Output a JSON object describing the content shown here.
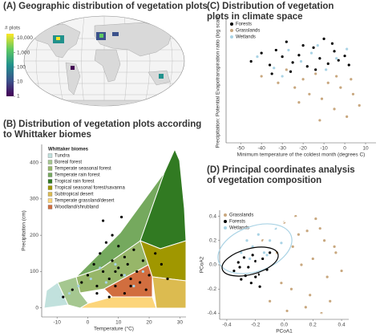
{
  "chart_data": [
    {
      "type": "map",
      "title": [
        "(A) Geographic distribution of vegetation plots"
      ],
      "colorbar": {
        "title": "# plots",
        "log": true,
        "lim": [
          1,
          20000
        ],
        "ticks": [
          {
            "value": 10000,
            "label": "10,000"
          },
          {
            "value": 1000,
            "label": "1,000"
          },
          100,
          10,
          1
        ]
      }
    },
    {
      "type": "scatter",
      "title": [
        "(B) Distribution of vegetation plots according",
        "to Whittaker biomes"
      ],
      "xlabel": "Temperature (°C)",
      "ylabel": "Precipitation (cm)",
      "xlim": [
        -15,
        32
      ],
      "ylim": [
        -25,
        450
      ],
      "xticks": [
        -10,
        0,
        10,
        20,
        30
      ],
      "yticks": [
        0,
        100,
        200,
        300,
        400
      ],
      "legend_title": "Whittaker biomes",
      "biomes": [
        {
          "name": "Tundra",
          "color": "#c1e1dd"
        },
        {
          "name": "Boreal forest",
          "color": "#a5c790"
        },
        {
          "name": "Temperate seasonal forest",
          "color": "#97b669"
        },
        {
          "name": "Temperate rain forest",
          "color": "#75a95e"
        },
        {
          "name": "Tropical rain forest",
          "color": "#317a22"
        },
        {
          "name": "Tropical seasonal forest/savanna",
          "color": "#a09700"
        },
        {
          "name": "Subtropical desert",
          "color": "#dcbb50"
        },
        {
          "name": "Temperate grassland/desert",
          "color": "#fcd57a"
        },
        {
          "name": "Woodland/shrubland",
          "color": "#d16e3f"
        }
      ],
      "series": [
        {
          "color": "#000000",
          "x": [
            -8,
            -5,
            -2,
            0,
            2,
            3,
            4,
            5,
            6,
            7,
            8,
            8,
            9,
            10,
            10,
            11,
            12,
            12,
            13,
            14,
            15,
            16,
            17,
            18,
            19,
            20,
            22,
            24,
            26,
            5,
            7,
            9,
            11,
            3,
            14
          ],
          "values": [
            30,
            50,
            70,
            90,
            120,
            60,
            150,
            100,
            180,
            80,
            130,
            200,
            60,
            110,
            170,
            90,
            140,
            40,
            120,
            80,
            160,
            100,
            70,
            130,
            50,
            90,
            150,
            120,
            80,
            240,
            30,
            100,
            250,
            40,
            60
          ]
        },
        {
          "color": "#a9d3e5",
          "x": [
            -6,
            -3,
            1,
            4,
            6,
            9,
            12,
            15,
            18
          ],
          "values": [
            40,
            60,
            80,
            110,
            70,
            120,
            90,
            60,
            100
          ]
        }
      ]
    },
    {
      "type": "scatter",
      "title": [
        "(C) Distribution of vegetation",
        "plots  in climate space"
      ],
      "xlabel": "Minimum temperature of the coldest month (degrees C)",
      "ylabel": "Precipitation: Potential Evapotranspiration ratio (log scale)",
      "xlim": [
        -57,
        15
      ],
      "ylim": [
        0.01,
        20
      ],
      "ylog": true,
      "xticks": [
        -50,
        -40,
        -30,
        -20,
        -10,
        0,
        10
      ],
      "series": [
        {
          "name": "Forests",
          "color": "#000000",
          "x": [
            -45,
            -40,
            -36,
            -33,
            -30,
            -28,
            -25,
            -22,
            -20,
            -18,
            -15,
            -12,
            -10,
            -8,
            -5,
            -3,
            0,
            -26,
            -14,
            -6,
            2,
            -35
          ],
          "values": [
            1.5,
            2.5,
            1.2,
            3,
            2,
            5,
            1.4,
            2.2,
            4,
            1.1,
            3.5,
            1.8,
            6,
            1.3,
            2.8,
            1.6,
            2.1,
            0.8,
            0.9,
            4.5,
            1.2,
            0.7
          ]
        },
        {
          "name": "Grasslands",
          "color": "#c8a77e",
          "x": [
            -40,
            -32,
            -28,
            -24,
            -20,
            -17,
            -14,
            -11,
            -8,
            -5,
            -2,
            1,
            4,
            7,
            -22,
            -12,
            -4,
            3
          ],
          "values": [
            0.6,
            0.4,
            0.9,
            0.3,
            0.5,
            0.2,
            0.7,
            0.15,
            0.4,
            0.08,
            0.3,
            0.05,
            0.2,
            0.1,
            0.12,
            0.04,
            0.6,
            0.5
          ]
        },
        {
          "name": "Wetlands",
          "color": "#a9d3e5",
          "x": [
            -42,
            -34,
            -27,
            -21,
            -16,
            -9,
            -4,
            1,
            -30,
            -13
          ],
          "values": [
            2,
            1,
            3,
            1.5,
            2.5,
            0.9,
            1.8,
            3.2,
            0.6,
            4
          ]
        }
      ]
    },
    {
      "type": "scatter",
      "title": [
        "(D) Principal coordinates analysis",
        "of vegetation composition"
      ],
      "xlabel": "PCoA1",
      "ylabel": "PCoA2",
      "xlim": [
        -0.45,
        0.45
      ],
      "ylim": [
        -0.45,
        0.45
      ],
      "xticks": [
        -0.4,
        -0.2,
        {
          "value": 0,
          "label": "0.0"
        },
        0.2,
        0.4
      ],
      "yticks": [
        -0.4,
        -0.2,
        {
          "value": 0,
          "label": "0.0"
        },
        0.2,
        0.4
      ],
      "series": [
        {
          "name": "Grasslands",
          "color": "#c8a77e",
          "x": [
            -0.15,
            -0.1,
            -0.05,
            0,
            0.05,
            0.1,
            0.15,
            0.2,
            0.25,
            0.3,
            0.35,
            0.4,
            0.02,
            0.08,
            0.18,
            0.28,
            0.12,
            0.22,
            0.32,
            -0.02,
            0.06,
            0.16,
            0.26,
            0.36
          ],
          "values": [
            0.2,
            -0.3,
            0.1,
            0.35,
            -0.2,
            0.25,
            -0.35,
            0.05,
            0.3,
            -0.1,
            0.15,
            -0.05,
            -0.38,
            0.4,
            -0.25,
            0.2,
            0,
            0.38,
            -0.3,
            -0.15,
            0.15,
            0.28,
            -0.4,
            0.1
          ]
        },
        {
          "name": "Forests",
          "color": "#000000",
          "x": [
            -0.35,
            -0.32,
            -0.3,
            -0.28,
            -0.25,
            -0.23,
            -0.2,
            -0.18,
            -0.15,
            -0.12,
            -0.1,
            -0.27,
            -0.22,
            -0.17,
            -0.31,
            -0.2
          ],
          "values": [
            -0.05,
            0.02,
            -0.12,
            0.06,
            -0.02,
            -0.15,
            0.03,
            -0.08,
            0.05,
            -0.04,
            0.1,
            -0.09,
            0.08,
            -0.18,
            -0.02,
            -0.1
          ]
        },
        {
          "name": "Wetlands",
          "color": "#a9d3e5",
          "x": [
            -0.3,
            -0.26,
            -0.22,
            -0.18,
            -0.14,
            -0.1,
            -0.06,
            -0.02,
            -0.24,
            -0.12
          ],
          "values": [
            0.1,
            0.2,
            0.15,
            0.25,
            0.1,
            0.2,
            0.3,
            0.18,
            0.05,
            0.08
          ]
        }
      ]
    }
  ]
}
